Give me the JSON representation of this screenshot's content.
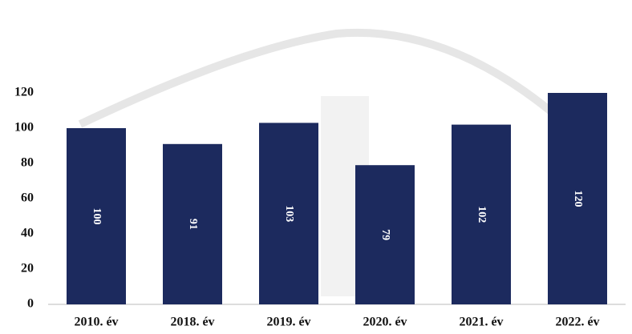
{
  "chart_data": {
    "type": "bar",
    "categories": [
      "2010. év",
      "2018. év",
      "2019. év",
      "2020. év",
      "2021. év",
      "2022. év"
    ],
    "values": [
      100,
      91,
      103,
      79,
      102,
      120
    ],
    "color": "#1c2a5e",
    "ylim": [
      0,
      120
    ],
    "yticks": [
      0,
      20,
      40,
      60,
      80,
      100,
      120
    ],
    "grid": false
  }
}
